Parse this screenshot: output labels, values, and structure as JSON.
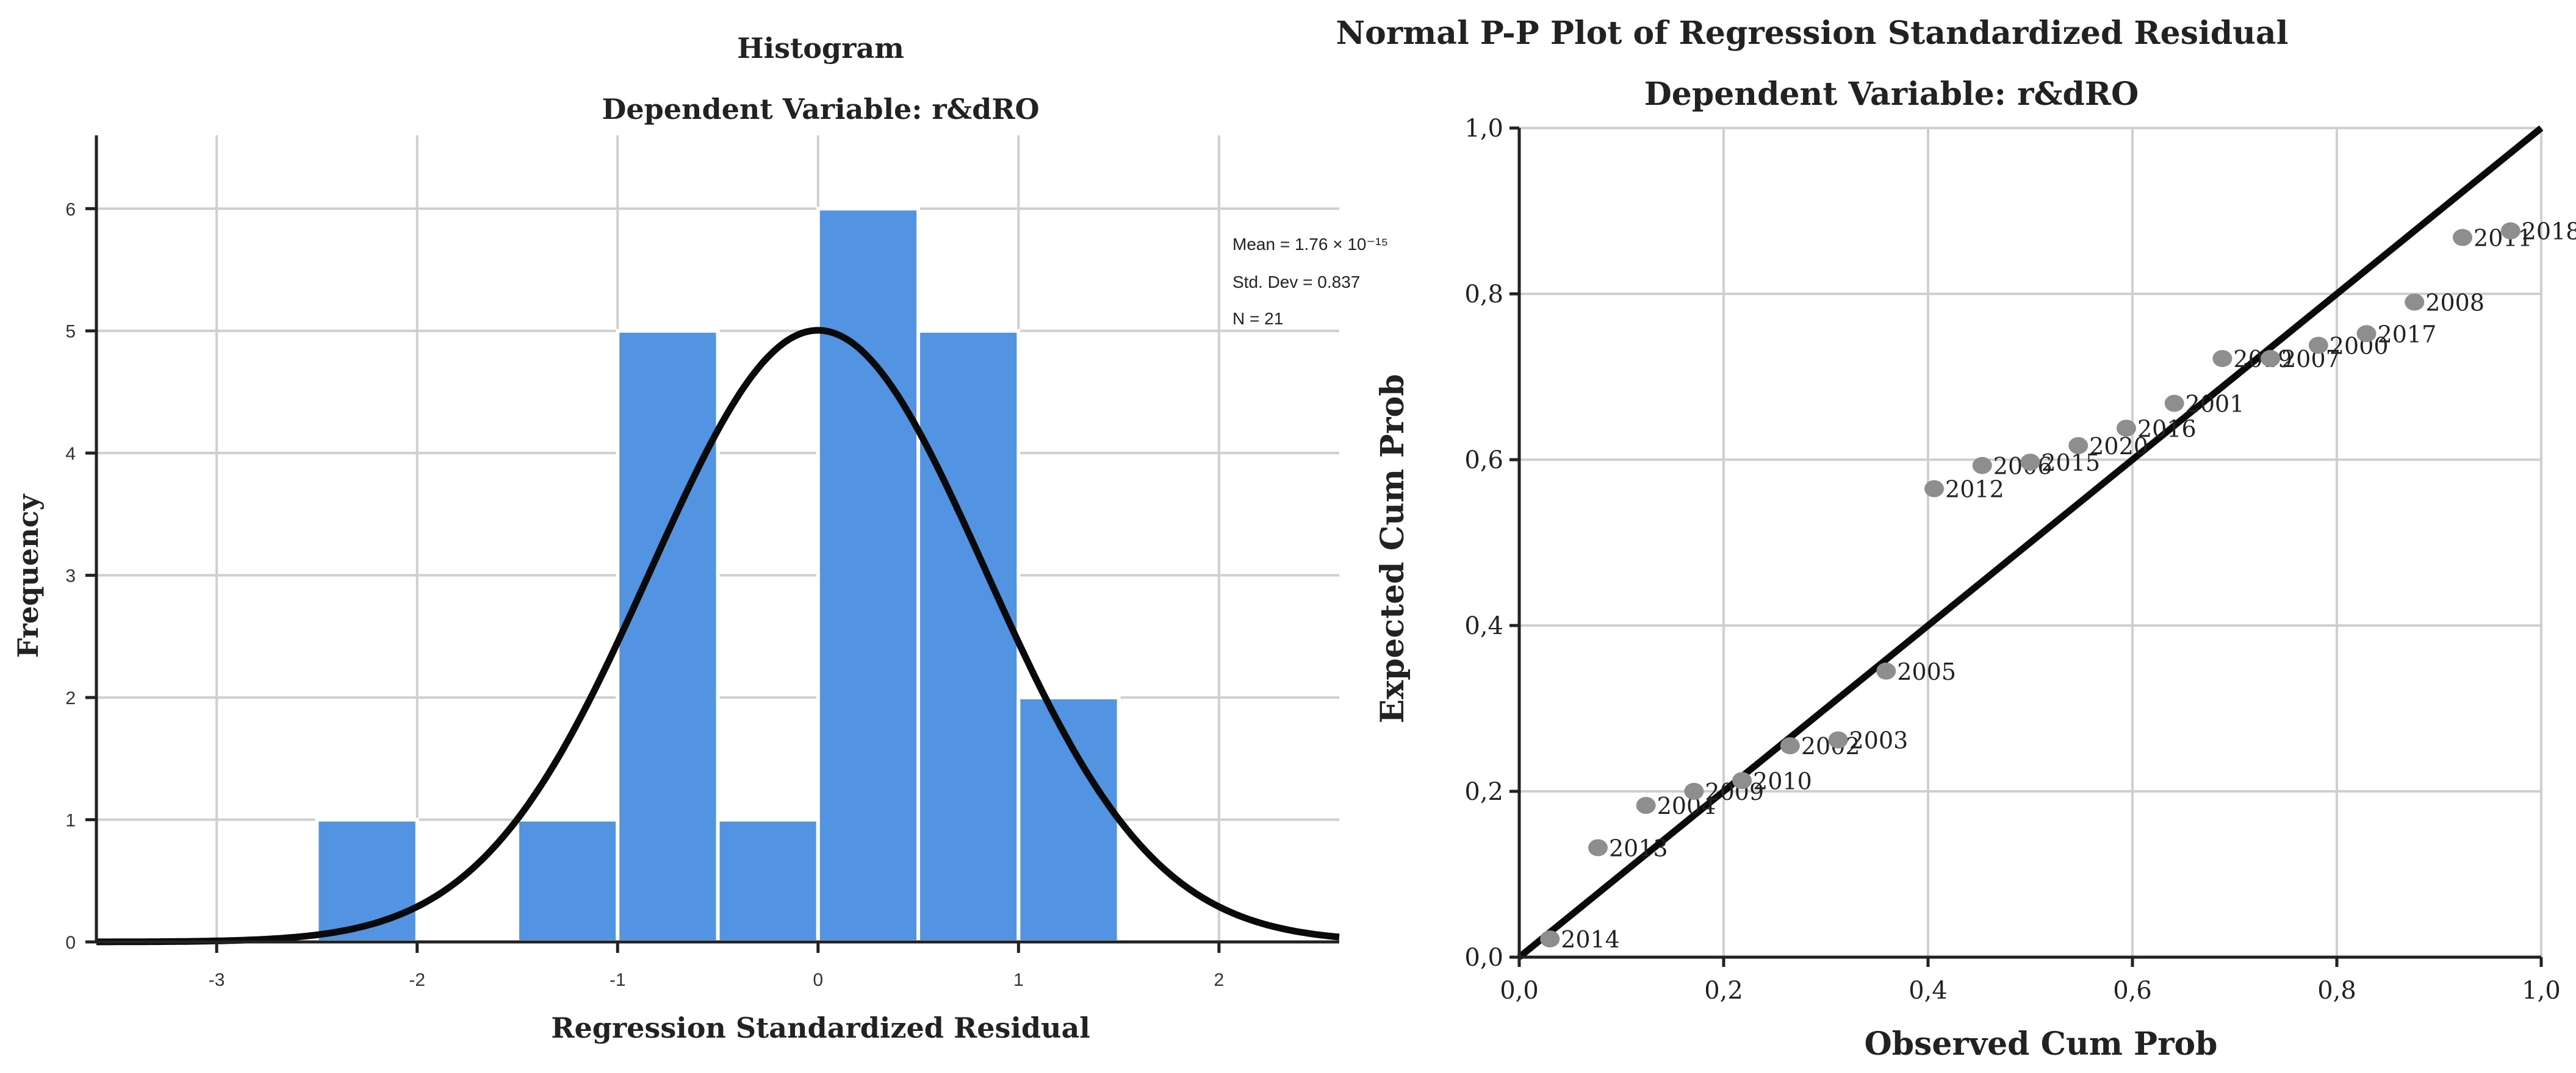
{
  "chart_data": [
    {
      "type": "bar",
      "title": "Histogram",
      "subtitle": "Dependent Variable: r&dRO",
      "xlabel": "Regression Standardized Residual",
      "ylabel": "Frequency",
      "xlim": [
        -3.6,
        2.6
      ],
      "ylim": [
        0,
        6.6
      ],
      "x_ticks": [
        -3,
        -2,
        -1,
        0,
        1,
        2
      ],
      "x_tick_labels": [
        "-3",
        "-2",
        "-1",
        "0",
        "1",
        "2"
      ],
      "y_ticks": [
        0,
        1,
        2,
        3,
        4,
        5,
        6
      ],
      "y_tick_labels": [
        "0",
        "1",
        "2",
        "3",
        "4",
        "5",
        "6"
      ],
      "bin_width": 0.5,
      "bins": [
        {
          "start": -2.5,
          "end": -2.0,
          "count": 1
        },
        {
          "start": -1.5,
          "end": -1.0,
          "count": 1
        },
        {
          "start": -1.0,
          "end": -0.5,
          "count": 5
        },
        {
          "start": -0.5,
          "end": 0.0,
          "count": 1
        },
        {
          "start": 0.0,
          "end": 0.5,
          "count": 6
        },
        {
          "start": 0.5,
          "end": 1.0,
          "count": 5
        },
        {
          "start": 1.0,
          "end": 1.5,
          "count": 2
        }
      ],
      "normal_curve": {
        "mean": 0,
        "std_dev": 0.837,
        "n": 21,
        "bin_width": 0.5
      },
      "stats_text": {
        "mean": "Mean = 1.76 × 10⁻¹⁵",
        "std_dev": "Std. Dev = 0.837",
        "n": "N = 21"
      },
      "colors": {
        "bar": "#5294e2",
        "curve": "#0a0a0a",
        "grid": "#cfcfcf"
      }
    },
    {
      "type": "scatter",
      "title": "Normal P-P Plot of Regression Standardized Residual",
      "subtitle": "Dependent Variable: r&dRO",
      "xlabel": "Observed Cum Prob",
      "ylabel": "Expected Cum Prob",
      "xlim": [
        0,
        1
      ],
      "ylim": [
        0,
        1
      ],
      "x_ticks": [
        0,
        0.2,
        0.4,
        0.6,
        0.8,
        1.0
      ],
      "x_tick_labels": [
        "0,0",
        "0,2",
        "0,4",
        "0,6",
        "0,8",
        "1,0"
      ],
      "y_ticks": [
        0,
        0.2,
        0.4,
        0.6,
        0.8,
        1.0
      ],
      "y_tick_labels": [
        "0,0",
        "0,2",
        "0,4",
        "0,6",
        "0,8",
        "1,0"
      ],
      "reference_line": [
        [
          0,
          0
        ],
        [
          1,
          1
        ]
      ],
      "points": [
        {
          "x": 0.03,
          "y": 0.022,
          "label": "2014"
        },
        {
          "x": 0.077,
          "y": 0.132,
          "label": "2013"
        },
        {
          "x": 0.124,
          "y": 0.183,
          "label": "2004"
        },
        {
          "x": 0.171,
          "y": 0.2,
          "label": "2009"
        },
        {
          "x": 0.218,
          "y": 0.213,
          "label": "2010"
        },
        {
          "x": 0.265,
          "y": 0.255,
          "label": "2002"
        },
        {
          "x": 0.312,
          "y": 0.262,
          "label": "2003"
        },
        {
          "x": 0.359,
          "y": 0.345,
          "label": "2005"
        },
        {
          "x": 0.406,
          "y": 0.565,
          "label": "2012"
        },
        {
          "x": 0.453,
          "y": 0.593,
          "label": "2006"
        },
        {
          "x": 0.5,
          "y": 0.597,
          "label": "2015"
        },
        {
          "x": 0.547,
          "y": 0.617,
          "label": "2020"
        },
        {
          "x": 0.594,
          "y": 0.638,
          "label": "2016"
        },
        {
          "x": 0.641,
          "y": 0.668,
          "label": "2001"
        },
        {
          "x": 0.688,
          "y": 0.722,
          "label": "2019"
        },
        {
          "x": 0.735,
          "y": 0.722,
          "label": "2007"
        },
        {
          "x": 0.782,
          "y": 0.738,
          "label": "2000"
        },
        {
          "x": 0.829,
          "y": 0.752,
          "label": "2017"
        },
        {
          "x": 0.876,
          "y": 0.79,
          "label": "2008"
        },
        {
          "x": 0.923,
          "y": 0.868,
          "label": "2011"
        },
        {
          "x": 0.97,
          "y": 0.876,
          "label": "2018"
        }
      ],
      "colors": {
        "point": "#8e8e8e",
        "line": "#0a0a0a",
        "grid": "#cfcfcf"
      }
    }
  ]
}
